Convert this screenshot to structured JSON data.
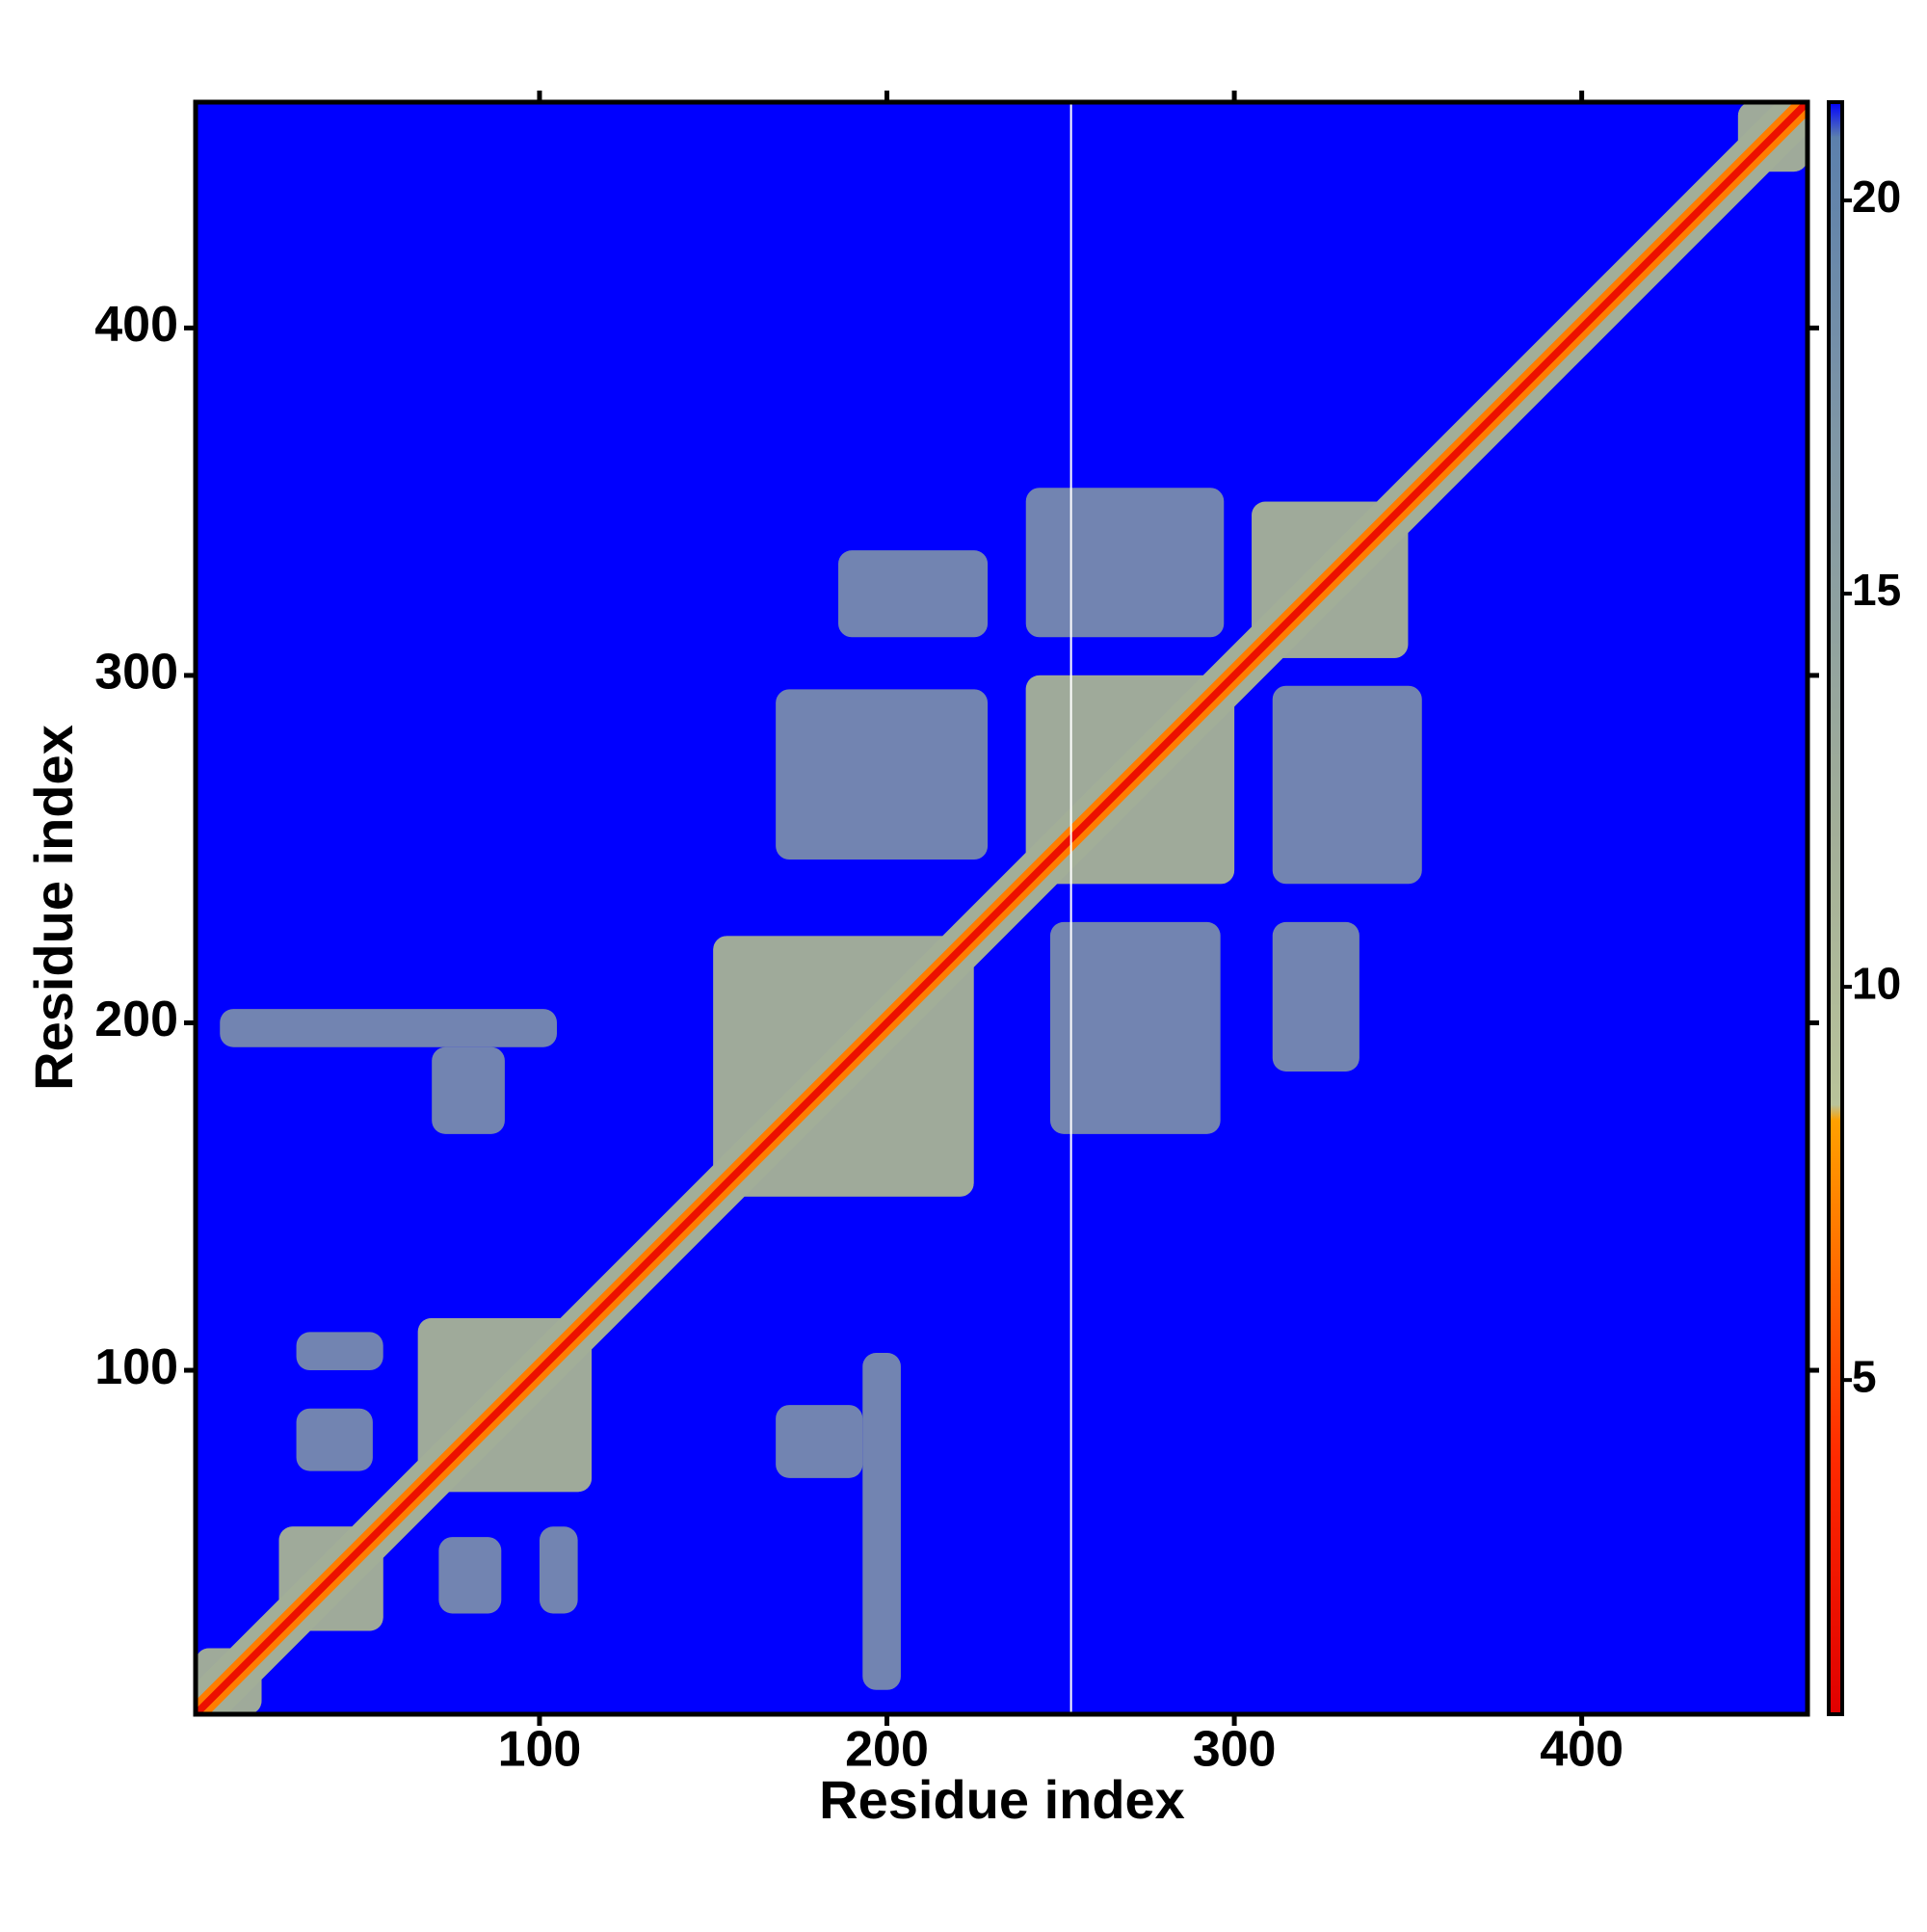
{
  "chart_data": {
    "type": "heatmap",
    "xlabel": "Residue index",
    "ylabel": "Residue index",
    "xlim": [
      1,
      465
    ],
    "ylim": [
      1,
      465
    ],
    "xticks": [
      100,
      200,
      300,
      400
    ],
    "yticks": [
      100,
      200,
      300,
      400
    ],
    "background_color": "#0000ff",
    "symmetric": true,
    "gap_x": [
      253
    ],
    "gap_color": "#ffffff",
    "colorbar": {
      "lim": [
        0.75,
        21.25
      ],
      "ticks": [
        5,
        10,
        15,
        20
      ],
      "colorscale": [
        [
          0.75,
          "#e00000"
        ],
        [
          4,
          "#ff2a00"
        ],
        [
          8.3,
          "#ffa000"
        ],
        [
          8.5,
          "#b9c39a"
        ],
        [
          12,
          "#a2ae98"
        ],
        [
          17,
          "#7f96a6"
        ],
        [
          20.8,
          "#5c80ac"
        ],
        [
          21.25,
          "#0000ff"
        ]
      ]
    },
    "diagonal": [
      {
        "halfwidth": 9,
        "value": 12
      },
      {
        "halfwidth": 4,
        "value": 7
      },
      {
        "halfwidth": 1.5,
        "value": 2
      }
    ],
    "cells": [
      {
        "x": [
          1,
          20
        ],
        "y": [
          1,
          20
        ],
        "value": 12
      },
      {
        "x": [
          25,
          55
        ],
        "y": [
          25,
          55
        ],
        "value": 12
      },
      {
        "x": [
          65,
          115
        ],
        "y": [
          65,
          115
        ],
        "value": 12
      },
      {
        "x": [
          125,
          136
        ],
        "y": [
          125,
          136
        ],
        "value": 12
      },
      {
        "x": [
          150,
          225
        ],
        "y": [
          150,
          225
        ],
        "value": 12
      },
      {
        "x": [
          240,
          300
        ],
        "y": [
          240,
          300
        ],
        "value": 12
      },
      {
        "x": [
          305,
          350
        ],
        "y": [
          305,
          350
        ],
        "value": 12
      },
      {
        "x": [
          445,
          465
        ],
        "y": [
          445,
          465
        ],
        "value": 12
      },
      {
        "x": [
          30,
          52
        ],
        "y": [
          71,
          89
        ],
        "value": 16
      },
      {
        "x": [
          30,
          55
        ],
        "y": [
          100,
          111
        ],
        "value": 16
      },
      {
        "x": [
          8,
          105
        ],
        "y": [
          193,
          204
        ],
        "value": 16
      },
      {
        "x": [
          69,
          90
        ],
        "y": [
          168,
          193
        ],
        "value": 16
      },
      {
        "x": [
          168,
          229
        ],
        "y": [
          247,
          296
        ],
        "value": 16
      },
      {
        "x": [
          186,
          229
        ],
        "y": [
          311,
          336
        ],
        "value": 16
      },
      {
        "x": [
          240,
          297
        ],
        "y": [
          311,
          354
        ],
        "value": 16
      }
    ]
  }
}
